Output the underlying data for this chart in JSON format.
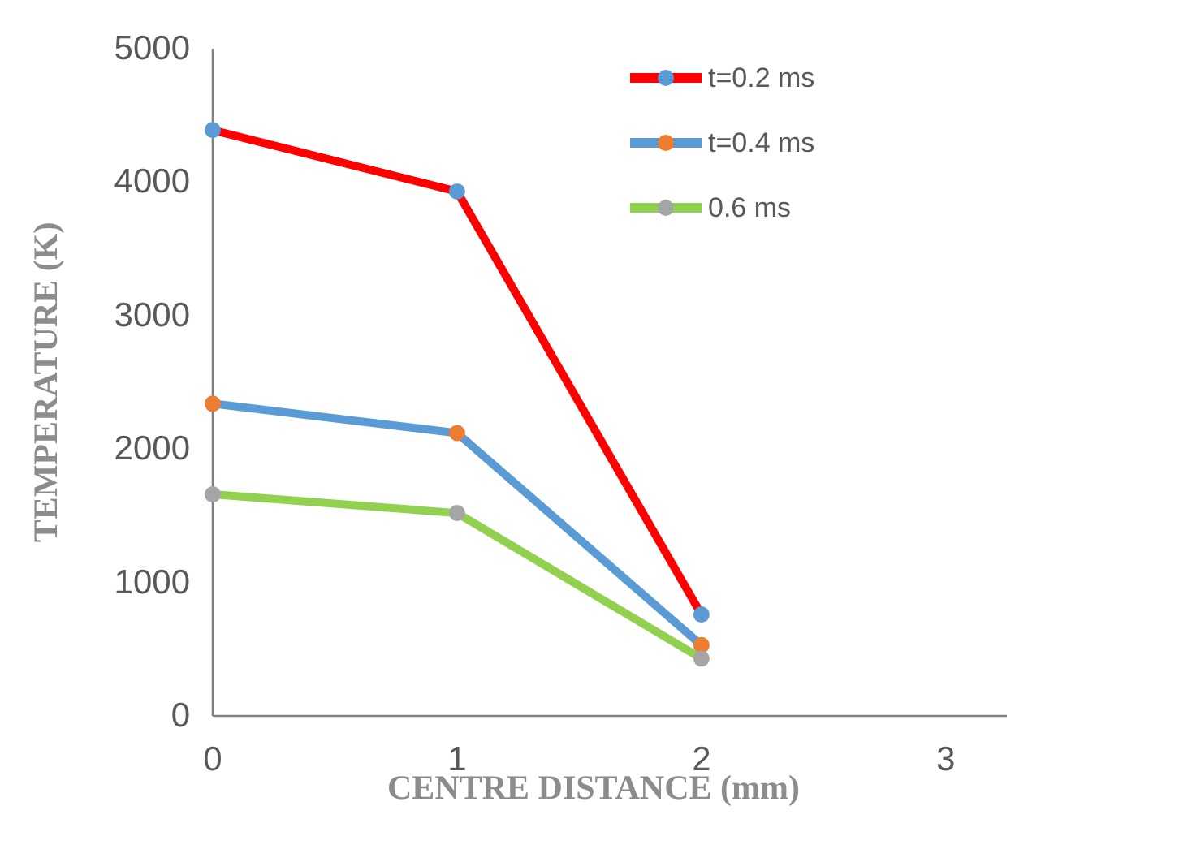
{
  "chart_data": {
    "type": "line",
    "xlabel": "CENTRE DISTANCE (mm)",
    "ylabel": "TEMPERATURE (K)",
    "x": [
      0,
      1,
      2
    ],
    "xlim": [
      0,
      3.25
    ],
    "xticks": [
      0,
      1,
      2,
      3
    ],
    "ylim": [
      0,
      5000
    ],
    "yticks": [
      0,
      1000,
      2000,
      3000,
      4000,
      5000
    ],
    "grid": false,
    "legend": "top right",
    "marker": "circle",
    "line_style": "solid",
    "series": [
      {
        "name": "t=0.2 ms",
        "color": "#ff0000",
        "colors": [
          "#5b9bd5",
          "#5b9bd5",
          "#5b9bd5"
        ],
        "values": [
          4390,
          3930,
          760
        ]
      },
      {
        "name": "t=0.4 ms",
        "color": "#5b9bd5",
        "colors": [
          "#ed7d31",
          "#ed7d31",
          "#ed7d31"
        ],
        "values": [
          2340,
          2120,
          530
        ]
      },
      {
        "name": "0.6 ms",
        "color": "#92d050",
        "colors": [
          "#a5a5a5",
          "#a5a5a5",
          "#a5a5a5"
        ],
        "values": [
          1660,
          1520,
          430
        ]
      }
    ]
  }
}
